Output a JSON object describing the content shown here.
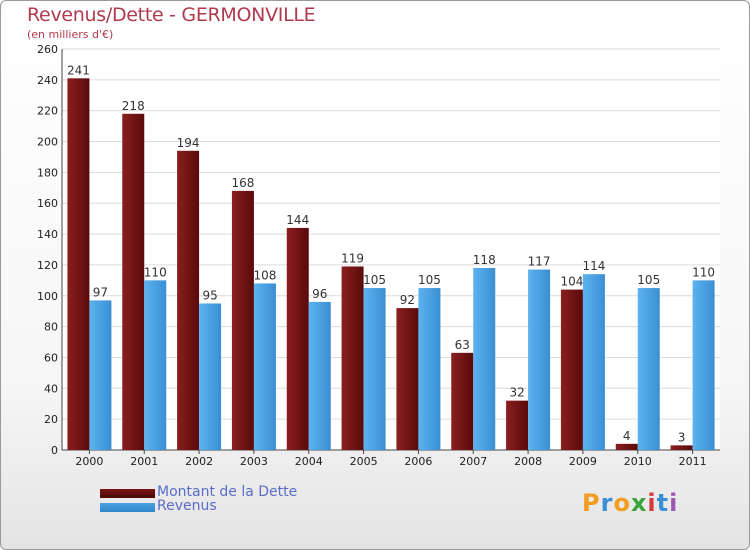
{
  "header": {
    "title": "Revenus/Dette - GERMONVILLE",
    "subtitle": "(en milliers d'€)"
  },
  "logo": {
    "letters": [
      "P",
      "r",
      "o",
      "x",
      "i",
      "t",
      "i"
    ],
    "colors": [
      "#f39c1f",
      "#3b8fd6",
      "#f39c1f",
      "#3aa53a",
      "#d63b3b",
      "#3b8fd6",
      "#9b59b6"
    ]
  },
  "colors": {
    "debt": "#7a1616",
    "revenue": "#4aa3e6",
    "title": "#b03a4e",
    "legend_text": "#5a6cc8"
  },
  "chart_data": {
    "type": "bar",
    "categories": [
      "2000",
      "2001",
      "2002",
      "2003",
      "2004",
      "2005",
      "2006",
      "2007",
      "2008",
      "2009",
      "2010",
      "2011"
    ],
    "series": [
      {
        "name": "Montant de la Dette",
        "values": [
          241,
          218,
          194,
          168,
          144,
          119,
          92,
          63,
          32,
          104,
          4,
          3
        ]
      },
      {
        "name": "Revenus",
        "values": [
          97,
          110,
          95,
          108,
          96,
          105,
          105,
          118,
          117,
          114,
          105,
          110
        ]
      }
    ],
    "title": "Revenus/Dette - GERMONVILLE",
    "subtitle": "(en milliers d'€)",
    "ylim": [
      0,
      260
    ],
    "yticks": [
      0,
      20,
      40,
      60,
      80,
      100,
      120,
      140,
      160,
      180,
      200,
      220,
      240,
      260
    ],
    "grid": true,
    "legend": "bottom-left"
  }
}
